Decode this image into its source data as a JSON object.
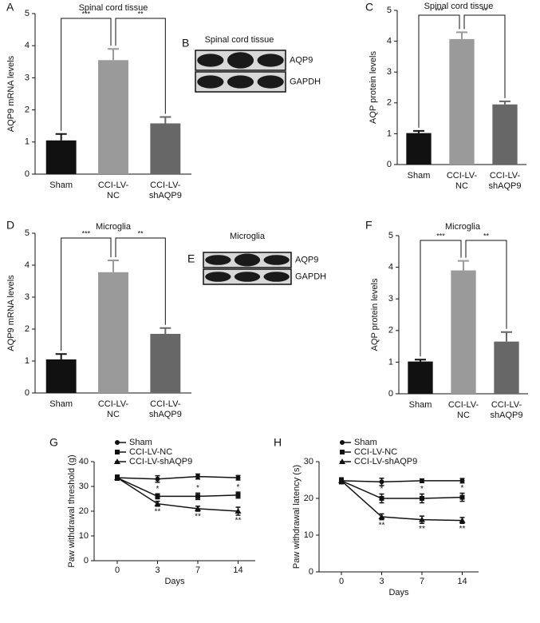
{
  "chart_data": [
    {
      "type": "bar",
      "panel": "A",
      "title": "Spinal cord tissue",
      "ylabel": "AQP9 mRNA levels",
      "categories": [
        "Sham",
        "CCI-LV-\nNC",
        "CCI-LV-\nshAQP9"
      ],
      "values": [
        1.05,
        3.55,
        1.58
      ],
      "errors": [
        0.2,
        0.35,
        0.2
      ],
      "colors": [
        "#111111",
        "#9a9a9a",
        "#676767"
      ],
      "ylim": [
        0,
        5
      ],
      "yticks": [
        0,
        1,
        2,
        3,
        4,
        5
      ],
      "annotations": [
        "***",
        "**"
      ]
    },
    {
      "type": "blot",
      "panel": "B",
      "title": "Spinal cord tissue",
      "rows": [
        "AQP9",
        "GAPDH"
      ]
    },
    {
      "type": "bar",
      "panel": "C",
      "title": "Spinal cord tissue",
      "ylabel": "AQP protein levels",
      "categories": [
        "Sham",
        "CCI-LV-\nNC",
        "CCI-LV-\nshAQP9"
      ],
      "values": [
        1.02,
        4.07,
        1.95
      ],
      "errors": [
        0.07,
        0.22,
        0.1
      ],
      "colors": [
        "#111111",
        "#9a9a9a",
        "#676767"
      ],
      "ylim": [
        0,
        5
      ],
      "yticks": [
        0,
        1,
        2,
        3,
        4,
        5
      ],
      "annotations": [
        "***",
        "**"
      ]
    },
    {
      "type": "bar",
      "panel": "D",
      "title": "Microglia",
      "ylabel": "AQP9 mRNA levels",
      "categories": [
        "Sham",
        "CCI-LV-\nNC",
        "CCI-LV-\nshAQP9"
      ],
      "values": [
        1.05,
        3.78,
        1.85
      ],
      "errors": [
        0.17,
        0.37,
        0.18
      ],
      "colors": [
        "#111111",
        "#9a9a9a",
        "#676767"
      ],
      "ylim": [
        0,
        5
      ],
      "yticks": [
        0,
        1,
        2,
        3,
        4,
        5
      ],
      "annotations": [
        "***",
        "**"
      ]
    },
    {
      "type": "blot",
      "panel": "E",
      "title": "Microglia",
      "rows": [
        "AQP9",
        "GAPDH"
      ]
    },
    {
      "type": "bar",
      "panel": "F",
      "title": "Microglia",
      "ylabel": "AQP protein levels",
      "categories": [
        "Sham",
        "CCI-LV-\nNC",
        "CCI-LV-\nshAQP9"
      ],
      "values": [
        1.02,
        3.9,
        1.65
      ],
      "errors": [
        0.06,
        0.3,
        0.3
      ],
      "colors": [
        "#111111",
        "#9a9a9a",
        "#676767"
      ],
      "ylim": [
        0,
        5
      ],
      "yticks": [
        0,
        1,
        2,
        3,
        4,
        5
      ],
      "annotations": [
        "***",
        "**"
      ]
    },
    {
      "type": "line",
      "panel": "G",
      "ylabel": "Paw withdrawal threshold (g)",
      "xlabel": "Days",
      "categories": [
        "0",
        "3",
        "7",
        "14"
      ],
      "ylim": [
        0,
        40
      ],
      "yticks": [
        0,
        10,
        20,
        30,
        40
      ],
      "legend": "top-left",
      "series": [
        {
          "name": "Sham",
          "color": "#111111",
          "marker": "circle",
          "values": [
            33.5,
            33,
            34,
            33.5
          ],
          "errors": [
            1,
            1.3,
            1,
            0.9
          ],
          "point_labels": [
            null,
            null,
            null,
            null
          ]
        },
        {
          "name": "CCI-LV-NC",
          "color": "#111111",
          "marker": "square",
          "values": [
            33.5,
            26,
            26,
            26.5
          ],
          "errors": [
            1,
            1,
            1.3,
            1.2
          ],
          "point_labels": [
            null,
            "*",
            "*",
            "*"
          ]
        },
        {
          "name": "CCI-LV-shAQP9",
          "color": "#111111",
          "marker": "triangle",
          "values": [
            33.5,
            23,
            21,
            20
          ],
          "errors": [
            1,
            1,
            1,
            1.6
          ],
          "point_labels": [
            null,
            "**",
            "**",
            "**"
          ]
        }
      ]
    },
    {
      "type": "line",
      "panel": "H",
      "ylabel": "Paw withdrawal latency (s)",
      "xlabel": "Days",
      "categories": [
        "0",
        "3",
        "7",
        "14"
      ],
      "ylim": [
        0,
        30
      ],
      "yticks": [
        0,
        10,
        20,
        30
      ],
      "legend": "top-left",
      "series": [
        {
          "name": "Sham",
          "color": "#111111",
          "marker": "circle",
          "values": [
            24.8,
            24.5,
            24.8,
            24.8
          ],
          "errors": [
            0.8,
            1,
            0.5,
            0.6
          ],
          "point_labels": [
            null,
            null,
            null,
            null
          ]
        },
        {
          "name": "CCI-LV-NC",
          "color": "#111111",
          "marker": "square",
          "values": [
            24.8,
            20,
            20,
            20.3
          ],
          "errors": [
            0.8,
            1.2,
            1.2,
            1.1
          ],
          "point_labels": [
            null,
            "*",
            "*",
            "*"
          ]
        },
        {
          "name": "CCI-LV-shAQP9",
          "color": "#111111",
          "marker": "triangle",
          "values": [
            24.8,
            15,
            14.2,
            14
          ],
          "errors": [
            0.8,
            0.8,
            1,
            0.8
          ],
          "point_labels": [
            null,
            "**",
            "**",
            "**"
          ]
        }
      ]
    }
  ]
}
